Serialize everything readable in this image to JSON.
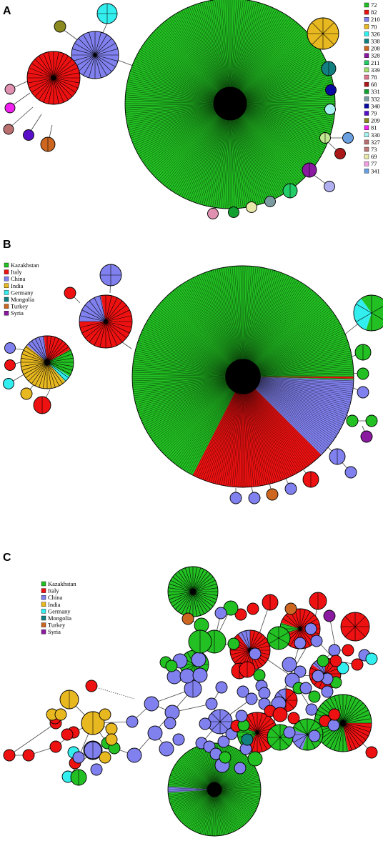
{
  "panels": [
    {
      "label": "A",
      "legend": [
        {
          "text": "72",
          "color": "#22c022"
        },
        {
          "text": "82",
          "color": "#ee1111"
        },
        {
          "text": "210",
          "color": "#8080ee"
        },
        {
          "text": "70",
          "color": "#e8b820"
        },
        {
          "text": "326",
          "color": "#33eeee"
        },
        {
          "text": "338",
          "color": "#128080"
        },
        {
          "text": "208",
          "color": "#cc6620"
        },
        {
          "text": "328",
          "color": "#8a1aa0"
        },
        {
          "text": "211",
          "color": "#22cc66"
        },
        {
          "text": "339",
          "color": "#a8e070"
        },
        {
          "text": "78",
          "color": "#dd7790"
        },
        {
          "text": "68",
          "color": "#aa1818"
        },
        {
          "text": "331",
          "color": "#12a030"
        },
        {
          "text": "332",
          "color": "#7a9ca0"
        },
        {
          "text": "340",
          "color": "#0a0aa0"
        },
        {
          "text": "79",
          "color": "#5a10c8"
        },
        {
          "text": "209",
          "color": "#8a8a20"
        },
        {
          "text": "81",
          "color": "#f020f0"
        },
        {
          "text": "330",
          "color": "#a8f0f0"
        },
        {
          "text": "327",
          "color": "#bb7070"
        },
        {
          "text": "73",
          "color": "#c07878"
        },
        {
          "text": "69",
          "color": "#e8e8a8"
        },
        {
          "text": "77",
          "color": "#f0a0e0"
        },
        {
          "text": "341",
          "color": "#6aa0e0"
        }
      ]
    },
    {
      "label": "B",
      "legend": [
        {
          "text": "Kazakhstan",
          "color": "#22c022"
        },
        {
          "text": "Italy",
          "color": "#ee1111"
        },
        {
          "text": "China",
          "color": "#8080ee"
        },
        {
          "text": "India",
          "color": "#e8b820"
        },
        {
          "text": "Germany",
          "color": "#33eeee"
        },
        {
          "text": "Mongolia",
          "color": "#128080"
        },
        {
          "text": "Turkey",
          "color": "#cc6620"
        },
        {
          "text": "Syria",
          "color": "#8a1aa0"
        }
      ]
    },
    {
      "label": "C",
      "legend": [
        {
          "text": "Kazakhstan",
          "color": "#22c022"
        },
        {
          "text": "Italy",
          "color": "#ee1111"
        },
        {
          "text": "China",
          "color": "#8080ee"
        },
        {
          "text": "India",
          "color": "#e8b820"
        },
        {
          "text": "Germany",
          "color": "#33eeee"
        },
        {
          "text": "Mongolia",
          "color": "#128080"
        },
        {
          "text": "Turkey",
          "color": "#cc6620"
        },
        {
          "text": "Syria",
          "color": "#8a1aa0"
        }
      ]
    }
  ]
}
